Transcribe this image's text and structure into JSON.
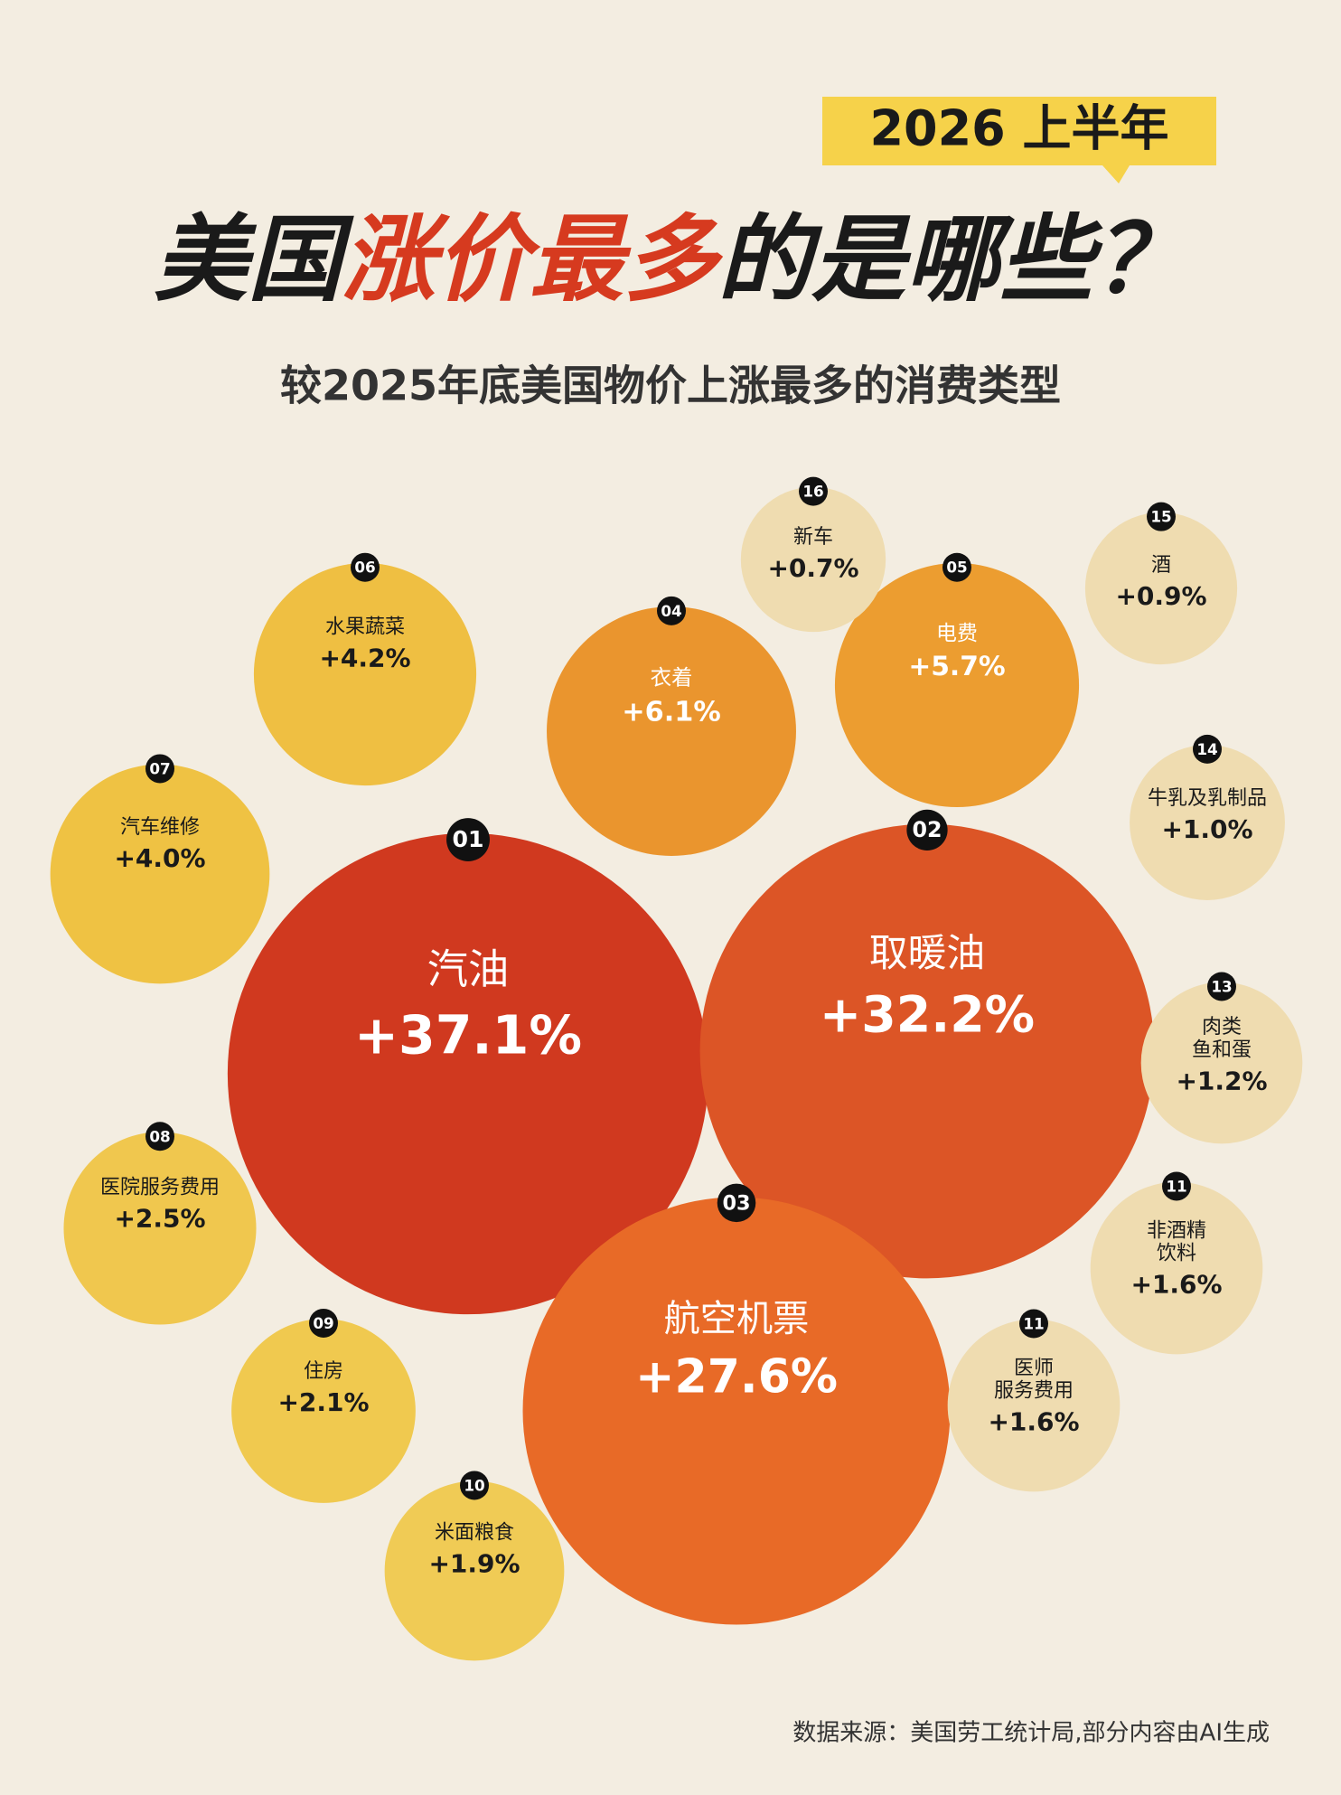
{
  "chart_data": {
    "type": "bubble",
    "tag": "2026 上半年",
    "title_parts": [
      "美国",
      "涨价最多",
      "的是哪些？"
    ],
    "subtitle": "较2025年底美国物价上涨最多的消费类型",
    "source": "数据来源：美国劳工统计局,部分内容由AI生成",
    "ranks": [
      "01",
      "02",
      "03",
      "04",
      "05",
      "06",
      "07",
      "08",
      "09",
      "10",
      "11",
      "11",
      "13",
      "14",
      "15",
      "16"
    ],
    "categories": [
      "汽油",
      "取暖油",
      "航空机票",
      "衣着",
      "电费",
      "水果蔬菜",
      "汽车维修",
      "医院服务费用",
      "住房",
      "米面粮食",
      "非酒精\n饮料",
      "医师\n服务费用",
      "肉类\n鱼和蛋",
      "牛乳及乳制品",
      "酒",
      "新车"
    ],
    "values": [
      37.1,
      32.2,
      27.6,
      6.1,
      5.7,
      4.2,
      4.0,
      2.5,
      2.1,
      1.9,
      1.6,
      1.6,
      1.2,
      1.0,
      0.9,
      0.7
    ],
    "value_labels": [
      "+37.1%",
      "+32.2%",
      "+27.6%",
      "+6.1%",
      "+5.7%",
      "+4.2%",
      "+4.0%",
      "+2.5%",
      "+2.1%",
      "+1.9%",
      "+1.6%",
      "+1.6%",
      "+1.2%",
      "+1.0%",
      "+0.9%",
      "+0.7%"
    ],
    "colors": [
      "#d0391f",
      "#dc5526",
      "#e86a27",
      "#ea952e",
      "#ec9d30",
      "#efbf42",
      "#efc243",
      "#f0c74e",
      "#f0c94f",
      "#f0cb55",
      "#efdcb0",
      "#efdcb0",
      "#efdcb0",
      "#efdcb0",
      "#efdcb0",
      "#efdcb0"
    ]
  }
}
